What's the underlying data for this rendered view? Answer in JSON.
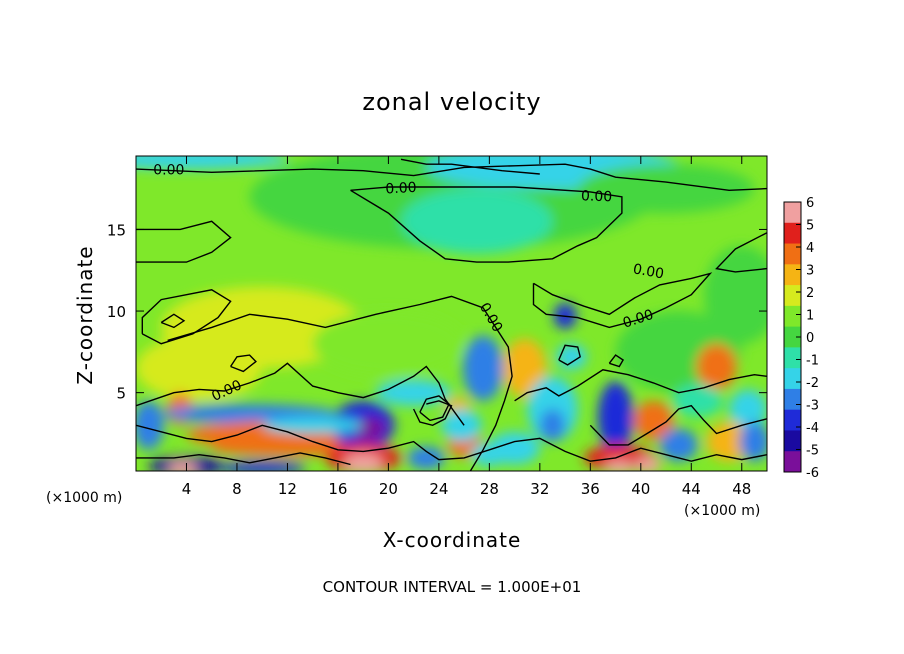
{
  "chart_data": {
    "type": "heatmap",
    "title": "zonal velocity",
    "xlabel": "X-coordinate",
    "ylabel": "Z-coordinate",
    "x_unit": "(×1000 m)",
    "z_unit": "(×1000 m)",
    "xlim": [
      0,
      50
    ],
    "ylim": [
      0.2,
      19.5
    ],
    "x_ticks": [
      4,
      8,
      12,
      16,
      20,
      24,
      28,
      32,
      36,
      40,
      44,
      48
    ],
    "y_ticks": [
      5,
      10,
      15
    ],
    "colorbar": {
      "ticks": [
        6,
        5,
        4,
        3,
        2,
        1,
        0,
        -1,
        -2,
        -3,
        -4,
        -5,
        -6
      ],
      "range": [
        -6,
        6
      ]
    },
    "contour_level_label": "0.00",
    "contour_labels": [
      "0.00",
      "0.00",
      "0.00",
      "0.00",
      "0.00",
      "0.00",
      "0.00"
    ],
    "footer": "CONTOUR INTERVAL = 1.000E+01"
  },
  "colors": {
    "scale": [
      "#7a0f9a",
      "#1a0aa0",
      "#1f2bd8",
      "#2f7fe6",
      "#35d3e8",
      "#2fe0a8",
      "#45d640",
      "#7fe82a",
      "#d6ea1e",
      "#f5b414",
      "#f06f14",
      "#e0201c",
      "#f0a0a0"
    ]
  }
}
